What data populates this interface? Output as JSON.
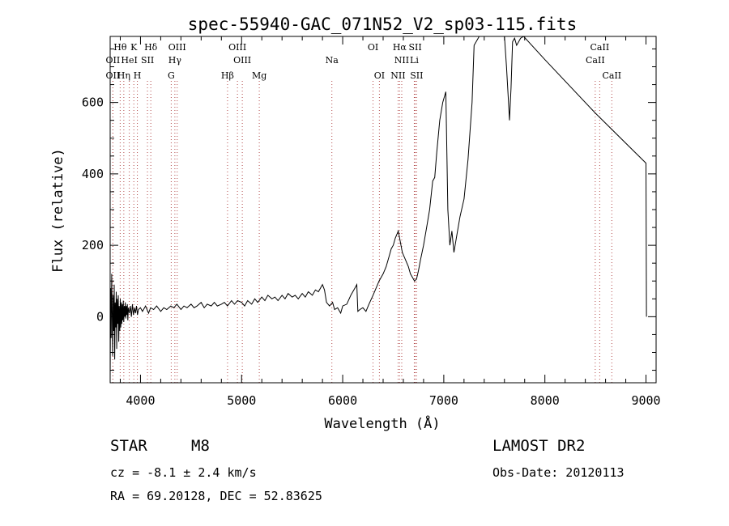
{
  "chart_data": {
    "type": "line",
    "title": "spec-55940-GAC_071N52_V2_sp03-115.fits",
    "xlabel": "Wavelength (Å)",
    "ylabel": "Flux (relative)",
    "xlim": [
      3700,
      9100
    ],
    "ylim": [
      -185,
      785
    ],
    "x_ticks": [
      4000,
      5000,
      6000,
      7000,
      8000,
      9000
    ],
    "y_ticks": [
      0,
      200,
      400,
      600
    ],
    "grid": false,
    "series": [
      {
        "values": [
          [
            3700,
            -170
          ],
          [
            3705,
            80
          ],
          [
            3710,
            -60
          ],
          [
            3715,
            120
          ],
          [
            3720,
            10
          ],
          [
            3725,
            -110
          ],
          [
            3730,
            60
          ],
          [
            3735,
            -40
          ],
          [
            3740,
            90
          ],
          [
            3745,
            -120
          ],
          [
            3750,
            40
          ],
          [
            3755,
            -30
          ],
          [
            3760,
            70
          ],
          [
            3765,
            -90
          ],
          [
            3770,
            50
          ],
          [
            3775,
            -20
          ],
          [
            3780,
            60
          ],
          [
            3785,
            -70
          ],
          [
            3790,
            30
          ],
          [
            3795,
            -40
          ],
          [
            3800,
            50
          ],
          [
            3805,
            -30
          ],
          [
            3810,
            40
          ],
          [
            3815,
            -20
          ],
          [
            3820,
            35
          ],
          [
            3825,
            -10
          ],
          [
            3830,
            45
          ],
          [
            3835,
            -15
          ],
          [
            3840,
            30
          ],
          [
            3845,
            0
          ],
          [
            3850,
            40
          ],
          [
            3855,
            -5
          ],
          [
            3860,
            30
          ],
          [
            3865,
            5
          ],
          [
            3870,
            35
          ],
          [
            3875,
            -10
          ],
          [
            3880,
            25
          ],
          [
            3890,
            10
          ],
          [
            3900,
            30
          ],
          [
            3910,
            0
          ],
          [
            3920,
            35
          ],
          [
            3930,
            5
          ],
          [
            3940,
            25
          ],
          [
            3950,
            10
          ],
          [
            3960,
            30
          ],
          [
            3970,
            5
          ],
          [
            3980,
            20
          ],
          [
            4000,
            25
          ],
          [
            4020,
            15
          ],
          [
            4050,
            30
          ],
          [
            4080,
            10
          ],
          [
            4100,
            25
          ],
          [
            4130,
            20
          ],
          [
            4160,
            30
          ],
          [
            4200,
            15
          ],
          [
            4230,
            25
          ],
          [
            4260,
            20
          ],
          [
            4300,
            30
          ],
          [
            4330,
            25
          ],
          [
            4360,
            35
          ],
          [
            4400,
            20
          ],
          [
            4430,
            30
          ],
          [
            4460,
            25
          ],
          [
            4500,
            35
          ],
          [
            4530,
            25
          ],
          [
            4560,
            30
          ],
          [
            4600,
            40
          ],
          [
            4630,
            25
          ],
          [
            4660,
            35
          ],
          [
            4700,
            30
          ],
          [
            4730,
            40
          ],
          [
            4760,
            30
          ],
          [
            4800,
            35
          ],
          [
            4830,
            40
          ],
          [
            4860,
            30
          ],
          [
            4900,
            45
          ],
          [
            4930,
            35
          ],
          [
            4960,
            45
          ],
          [
            5000,
            40
          ],
          [
            5030,
            30
          ],
          [
            5060,
            45
          ],
          [
            5100,
            35
          ],
          [
            5130,
            50
          ],
          [
            5160,
            40
          ],
          [
            5200,
            55
          ],
          [
            5230,
            45
          ],
          [
            5260,
            60
          ],
          [
            5300,
            50
          ],
          [
            5330,
            55
          ],
          [
            5360,
            45
          ],
          [
            5400,
            60
          ],
          [
            5430,
            50
          ],
          [
            5460,
            65
          ],
          [
            5500,
            55
          ],
          [
            5530,
            60
          ],
          [
            5560,
            50
          ],
          [
            5600,
            65
          ],
          [
            5630,
            55
          ],
          [
            5660,
            70
          ],
          [
            5700,
            60
          ],
          [
            5730,
            75
          ],
          [
            5760,
            70
          ],
          [
            5800,
            90
          ],
          [
            5820,
            75
          ],
          [
            5840,
            40
          ],
          [
            5870,
            30
          ],
          [
            5900,
            40
          ],
          [
            5920,
            20
          ],
          [
            5950,
            25
          ],
          [
            5980,
            10
          ],
          [
            6000,
            30
          ],
          [
            6040,
            35
          ],
          [
            6080,
            60
          ],
          [
            6120,
            80
          ],
          [
            6140,
            90
          ],
          [
            6150,
            15
          ],
          [
            6170,
            20
          ],
          [
            6200,
            25
          ],
          [
            6230,
            15
          ],
          [
            6260,
            35
          ],
          [
            6300,
            60
          ],
          [
            6330,
            80
          ],
          [
            6360,
            100
          ],
          [
            6400,
            120
          ],
          [
            6430,
            140
          ],
          [
            6460,
            170
          ],
          [
            6480,
            190
          ],
          [
            6500,
            200
          ],
          [
            6520,
            220
          ],
          [
            6550,
            240
          ],
          [
            6570,
            210
          ],
          [
            6590,
            180
          ],
          [
            6620,
            160
          ],
          [
            6650,
            140
          ],
          [
            6670,
            120
          ],
          [
            6690,
            110
          ],
          [
            6710,
            100
          ],
          [
            6730,
            105
          ],
          [
            6750,
            130
          ],
          [
            6770,
            160
          ],
          [
            6800,
            200
          ],
          [
            6830,
            250
          ],
          [
            6860,
            300
          ],
          [
            6890,
            380
          ],
          [
            6910,
            390
          ],
          [
            6930,
            460
          ],
          [
            6960,
            550
          ],
          [
            6990,
            600
          ],
          [
            7020,
            630
          ],
          [
            7040,
            300
          ],
          [
            7060,
            200
          ],
          [
            7080,
            240
          ],
          [
            7100,
            180
          ],
          [
            7130,
            230
          ],
          [
            7160,
            280
          ],
          [
            7200,
            330
          ],
          [
            7240,
            440
          ],
          [
            7280,
            600
          ],
          [
            7300,
            760
          ],
          [
            7350,
            785
          ],
          [
            7400,
            785
          ],
          [
            7450,
            785
          ],
          [
            7500,
            785
          ],
          [
            7550,
            785
          ],
          [
            7600,
            785
          ],
          [
            7620,
            700
          ],
          [
            7640,
            600
          ],
          [
            7650,
            550
          ],
          [
            7665,
            640
          ],
          [
            7680,
            770
          ],
          [
            7700,
            780
          ],
          [
            7720,
            760
          ],
          [
            7740,
            770
          ],
          [
            7760,
            780
          ],
          [
            7790,
            785
          ],
          [
            8000,
            720
          ],
          [
            8500,
            570
          ],
          [
            9000,
            430
          ],
          [
            9005,
            0
          ]
        ]
      }
    ],
    "lines": [
      {
        "label": "Hθ",
        "x": 3799,
        "row": 1
      },
      {
        "label": "K",
        "x": 3934,
        "row": 1
      },
      {
        "label": "Hδ",
        "x": 4102,
        "row": 1
      },
      {
        "label": "OIII",
        "x": 4363,
        "row": 1
      },
      {
        "label": "OIII",
        "x": 4959,
        "row": 1
      },
      {
        "label": "OI",
        "x": 6300,
        "row": 1
      },
      {
        "label": "Hα",
        "x": 6563,
        "row": 1
      },
      {
        "label": "SII",
        "x": 6717,
        "row": 1
      },
      {
        "label": "CaII",
        "x": 8542,
        "row": 1
      },
      {
        "label": "OII",
        "x": 3727,
        "row": 2
      },
      {
        "label": "HeI",
        "x": 3889,
        "row": 2
      },
      {
        "label": "SII",
        "x": 4069,
        "row": 2
      },
      {
        "label": "Hγ",
        "x": 4340,
        "row": 2
      },
      {
        "label": "OIII",
        "x": 5007,
        "row": 2
      },
      {
        "label": "Na",
        "x": 5893,
        "row": 2
      },
      {
        "label": "NII",
        "x": 6584,
        "row": 2
      },
      {
        "label": "Li",
        "x": 6708,
        "row": 2
      },
      {
        "label": "CaII",
        "x": 8498,
        "row": 2
      },
      {
        "label": "OII",
        "x": 3727,
        "row": 3
      },
      {
        "label": "Hη",
        "x": 3835,
        "row": 3
      },
      {
        "label": "H",
        "x": 3969,
        "row": 3
      },
      {
        "label": "G",
        "x": 4304,
        "row": 3
      },
      {
        "label": "Hβ",
        "x": 4861,
        "row": 3
      },
      {
        "label": "Mg",
        "x": 5175,
        "row": 3
      },
      {
        "label": "OI",
        "x": 6363,
        "row": 3
      },
      {
        "label": "NII",
        "x": 6548,
        "row": 3
      },
      {
        "label": "SII",
        "x": 6731,
        "row": 3
      },
      {
        "label": "CaII",
        "x": 8662,
        "row": 3
      }
    ]
  },
  "info": {
    "class": "STAR",
    "subclass": "M8",
    "survey": "LAMOST DR2",
    "cz": "cz = -8.1 ± 2.4 km/s",
    "obs_date": "Obs-Date: 20120113",
    "coords": "RA =  69.20128, DEC =  52.83625"
  }
}
